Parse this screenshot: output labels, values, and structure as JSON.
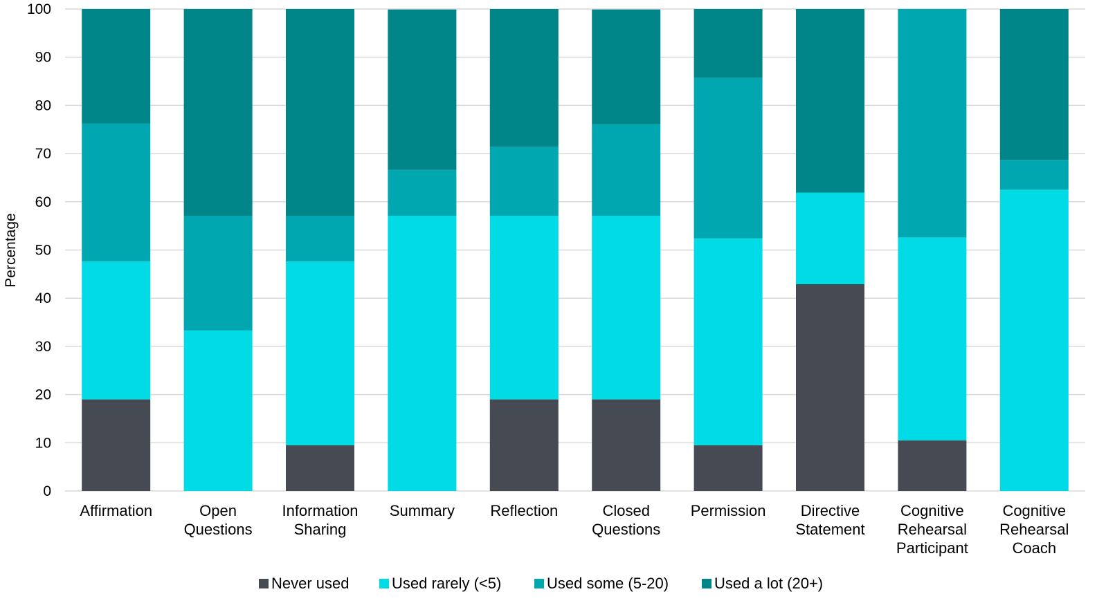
{
  "chart_data": {
    "type": "bar",
    "stacked": true,
    "ylabel": "Percentage",
    "xlabel": "",
    "ylim": [
      0,
      100
    ],
    "yticks": [
      "0",
      "10",
      "20",
      "30",
      "40",
      "50",
      "60",
      "70",
      "80",
      "90",
      "100"
    ],
    "grid": true,
    "legend_position": "bottom",
    "categories": [
      [
        "Affirmation"
      ],
      [
        "Open",
        "Questions"
      ],
      [
        "Information",
        "Sharing"
      ],
      [
        "Summary"
      ],
      [
        "Reflection"
      ],
      [
        "Closed",
        "Questions"
      ],
      [
        "Permission"
      ],
      [
        "Directive",
        "Statement"
      ],
      [
        "Cognitive",
        "Rehearsal",
        "Participant"
      ],
      [
        "Cognitive",
        "Rehearsal",
        "Coach"
      ]
    ],
    "series": [
      {
        "name": "Never used",
        "color": "#464b53",
        "values": [
          19.0,
          0.0,
          9.5,
          0.0,
          19.0,
          19.0,
          9.5,
          42.9,
          10.5,
          0.0
        ]
      },
      {
        "name": "Used rarely (<5)",
        "color": "#00dbe5",
        "values": [
          28.6,
          33.3,
          38.1,
          57.1,
          38.1,
          38.1,
          42.9,
          19.0,
          42.1,
          62.5
        ]
      },
      {
        "name": "Used some (5-20)",
        "color": "#00a6b0",
        "values": [
          28.6,
          23.8,
          9.5,
          9.5,
          14.3,
          19.0,
          33.3,
          0.0,
          47.4,
          6.2
        ]
      },
      {
        "name": "Used a lot (20+)",
        "color": "#008688",
        "values": [
          23.8,
          42.9,
          42.9,
          33.3,
          28.6,
          23.8,
          14.3,
          38.1,
          0.0,
          31.3
        ]
      }
    ]
  }
}
